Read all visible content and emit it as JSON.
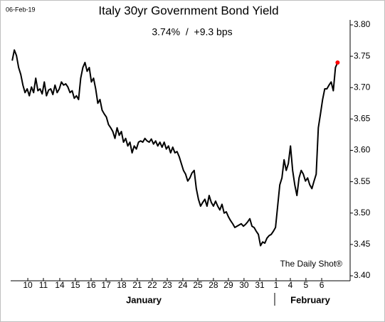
{
  "chart_data": {
    "type": "line",
    "date_label": "06-Feb-19",
    "title": "Italy 30yr Government Bond Yield",
    "subtitle": "3.74%  /  +9.3 bps",
    "source": "The Daily Shot®",
    "x_group_labels": [
      "January",
      "February"
    ],
    "color": "#000000",
    "last_point_color": "#ff0000",
    "xlim": [
      -0.1,
      22.1
    ],
    "ylim": [
      3.4,
      3.8
    ],
    "xticks": [
      {
        "value": 1.02,
        "label": "10"
      },
      {
        "value": 2.04,
        "label": "11"
      },
      {
        "value": 3.11,
        "label": "14"
      },
      {
        "value": 4.13,
        "label": "15"
      },
      {
        "value": 5.16,
        "label": "16"
      },
      {
        "value": 6.14,
        "label": "17"
      },
      {
        "value": 7.16,
        "label": "18"
      },
      {
        "value": 8.18,
        "label": "21"
      },
      {
        "value": 9.16,
        "label": "22"
      },
      {
        "value": 10.14,
        "label": "23"
      },
      {
        "value": 11.16,
        "label": "24"
      },
      {
        "value": 12.14,
        "label": "25"
      },
      {
        "value": 13.16,
        "label": "28"
      },
      {
        "value": 14.14,
        "label": "29"
      },
      {
        "value": 15.16,
        "label": "30"
      },
      {
        "value": 16.19,
        "label": "31"
      },
      {
        "value": 17.26,
        "label": "1"
      },
      {
        "value": 18.19,
        "label": "4"
      },
      {
        "value": 19.21,
        "label": "5"
      },
      {
        "value": 20.24,
        "label": "6"
      }
    ],
    "yticks": [
      {
        "value": 3.4,
        "label": "3.40"
      },
      {
        "value": 3.45,
        "label": "3.45"
      },
      {
        "value": 3.5,
        "label": "3.50"
      },
      {
        "value": 3.55,
        "label": "3.55"
      },
      {
        "value": 3.6,
        "label": "3.60"
      },
      {
        "value": 3.65,
        "label": "3.65"
      },
      {
        "value": 3.7,
        "label": "3.70"
      },
      {
        "value": 3.75,
        "label": "3.75"
      },
      {
        "value": 3.8,
        "label": "3.80"
      }
    ],
    "x": [
      0,
      0.14,
      0.28,
      0.42,
      0.56,
      0.7,
      0.84,
      0.98,
      1.12,
      1.26,
      1.4,
      1.54,
      1.68,
      1.82,
      1.96,
      2.1,
      2.24,
      2.38,
      2.52,
      2.66,
      2.8,
      2.94,
      3.08,
      3.22,
      3.36,
      3.5,
      3.64,
      3.78,
      3.92,
      4.06,
      4.2,
      4.34,
      4.48,
      4.62,
      4.76,
      4.9,
      5.04,
      5.18,
      5.32,
      5.46,
      5.6,
      5.74,
      5.88,
      6.02,
      6.16,
      6.3,
      6.44,
      6.58,
      6.72,
      6.86,
      7,
      7.14,
      7.28,
      7.42,
      7.56,
      7.7,
      7.84,
      7.98,
      8.12,
      8.26,
      8.4,
      8.54,
      8.68,
      8.82,
      8.96,
      9.1,
      9.24,
      9.38,
      9.52,
      9.66,
      9.8,
      9.94,
      10.08,
      10.22,
      10.36,
      10.5,
      10.64,
      10.78,
      10.92,
      11.06,
      11.2,
      11.34,
      11.48,
      11.62,
      11.76,
      11.9,
      12.04,
      12.18,
      12.32,
      12.46,
      12.6,
      12.74,
      12.88,
      13.02,
      13.16,
      13.3,
      13.44,
      13.58,
      13.72,
      13.86,
      14,
      14.14,
      14.28,
      14.42,
      14.56,
      14.7,
      14.84,
      14.98,
      15.12,
      15.26,
      15.4,
      15.54,
      15.68,
      15.82,
      15.96,
      16.1,
      16.24,
      16.38,
      16.52,
      16.66,
      16.8,
      16.94,
      17.08,
      17.22,
      17.36,
      17.5,
      17.64,
      17.78,
      17.92,
      18.06,
      18.2,
      18.34,
      18.48,
      18.62,
      18.76,
      18.9,
      19.04,
      19.18,
      19.32,
      19.46,
      19.6,
      19.74,
      19.88,
      20.02,
      20.16,
      20.3,
      20.44,
      20.58,
      20.72,
      20.86,
      21,
      21.14,
      21.28
    ],
    "values": [
      3.743,
      3.76,
      3.751,
      3.732,
      3.721,
      3.704,
      3.692,
      3.698,
      3.687,
      3.701,
      3.692,
      3.715,
      3.695,
      3.698,
      3.69,
      3.709,
      3.687,
      3.696,
      3.698,
      3.689,
      3.704,
      3.692,
      3.698,
      3.709,
      3.704,
      3.706,
      3.701,
      3.692,
      3.695,
      3.683,
      3.687,
      3.681,
      3.715,
      3.732,
      3.74,
      3.726,
      3.732,
      3.709,
      3.715,
      3.698,
      3.675,
      3.681,
      3.664,
      3.658,
      3.653,
      3.641,
      3.636,
      3.63,
      3.619,
      3.636,
      3.624,
      3.63,
      3.613,
      3.619,
      3.607,
      3.613,
      3.596,
      3.607,
      3.602,
      3.613,
      3.615,
      3.613,
      3.619,
      3.615,
      3.613,
      3.618,
      3.61,
      3.615,
      3.607,
      3.613,
      3.605,
      3.613,
      3.602,
      3.607,
      3.596,
      3.605,
      3.596,
      3.598,
      3.59,
      3.579,
      3.568,
      3.562,
      3.551,
      3.556,
      3.564,
      3.568,
      3.539,
      3.522,
      3.511,
      3.517,
      3.522,
      3.511,
      3.528,
      3.517,
      3.511,
      3.519,
      3.511,
      3.505,
      3.514,
      3.5,
      3.502,
      3.494,
      3.488,
      3.483,
      3.477,
      3.479,
      3.481,
      3.483,
      3.479,
      3.482,
      3.486,
      3.491,
      3.479,
      3.477,
      3.471,
      3.466,
      3.448,
      3.454,
      3.452,
      3.46,
      3.464,
      3.466,
      3.471,
      3.477,
      3.511,
      3.545,
      3.556,
      3.585,
      3.568,
      3.579,
      3.607,
      3.568,
      3.545,
      3.528,
      3.556,
      3.568,
      3.562,
      3.551,
      3.556,
      3.545,
      3.539,
      3.551,
      3.562,
      3.636,
      3.658,
      3.681,
      3.698,
      3.698,
      3.704,
      3.709,
      3.695,
      3.732,
      3.74
    ]
  }
}
